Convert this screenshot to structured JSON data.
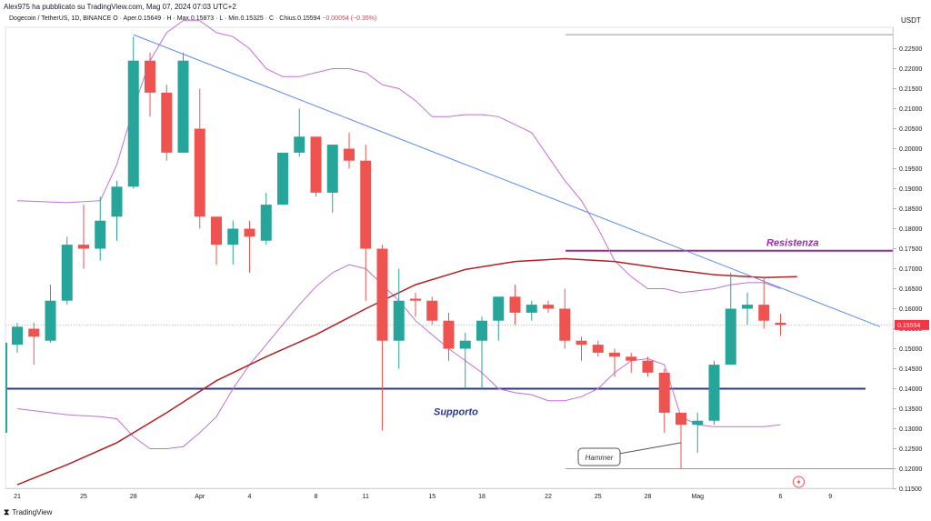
{
  "header": {
    "publisher": "Alex975 ha pubblicato su TradingView.com, Mag 07, 2024 07:03 UTC+2",
    "symbol": "Dogecoin / TetherUS, 1D, BINANCE",
    "ohlc": "O · Aper.0.15649 · H · Max.0.15873 · L · Min.0.15325 · C · Chius.0.15594",
    "change": "−0.00054 (−0.35%)"
  },
  "currency": "USDT",
  "branding": "TradingView",
  "colors": {
    "up": "#26a69a",
    "down": "#ef5350",
    "trendline": "#5b8def",
    "support": "#283593",
    "resistance": "#9c27b0",
    "ma": "#b22222",
    "bands": "#c070d8"
  },
  "chart_data": {
    "type": "candlestick",
    "ylim": [
      0.115,
      0.23
    ],
    "y_ticks": [
      "0.22500",
      "0.22000",
      "0.21500",
      "0.21000",
      "0.20500",
      "0.20000",
      "0.19500",
      "0.19000",
      "0.18500",
      "0.18000",
      "0.17500",
      "0.17000",
      "0.16500",
      "0.16000",
      "0.15500",
      "0.15000",
      "0.14500",
      "0.14000",
      "0.13500",
      "0.13000",
      "0.12500",
      "0.12000",
      "0.11500"
    ],
    "x_ticks": [
      {
        "label": "21",
        "index": 0
      },
      {
        "label": "25",
        "index": 4
      },
      {
        "label": "28",
        "index": 7
      },
      {
        "label": "Apr",
        "index": 11
      },
      {
        "label": "4",
        "index": 14
      },
      {
        "label": "8",
        "index": 18
      },
      {
        "label": "11",
        "index": 21
      },
      {
        "label": "15",
        "index": 25
      },
      {
        "label": "18",
        "index": 28
      },
      {
        "label": "22",
        "index": 32
      },
      {
        "label": "25",
        "index": 35
      },
      {
        "label": "28",
        "index": 38
      },
      {
        "label": "Mag",
        "index": 41
      },
      {
        "label": "6",
        "index": 46
      },
      {
        "label": "9",
        "index": 49
      }
    ],
    "candles": [
      [
        0.151,
        0.1565,
        0.149,
        0.1555
      ],
      [
        0.155,
        0.1565,
        0.146,
        0.153
      ],
      [
        0.152,
        0.166,
        0.1515,
        0.162
      ],
      [
        0.162,
        0.178,
        0.161,
        0.176
      ],
      [
        0.176,
        0.186,
        0.17,
        0.175
      ],
      [
        0.175,
        0.188,
        0.172,
        0.182
      ],
      [
        0.183,
        0.192,
        0.177,
        0.1905
      ],
      [
        0.1905,
        0.228,
        0.19,
        0.222
      ],
      [
        0.222,
        0.224,
        0.208,
        0.214
      ],
      [
        0.214,
        0.216,
        0.197,
        0.199
      ],
      [
        0.199,
        0.224,
        0.199,
        0.222
      ],
      [
        0.205,
        0.215,
        0.18,
        0.183
      ],
      [
        0.183,
        0.183,
        0.171,
        0.176
      ],
      [
        0.176,
        0.182,
        0.171,
        0.18
      ],
      [
        0.18,
        0.182,
        0.169,
        0.178
      ],
      [
        0.177,
        0.189,
        0.176,
        0.186
      ],
      [
        0.186,
        0.199,
        0.186,
        0.199
      ],
      [
        0.199,
        0.21,
        0.198,
        0.203
      ],
      [
        0.203,
        0.202,
        0.188,
        0.189
      ],
      [
        0.189,
        0.201,
        0.184,
        0.201
      ],
      [
        0.2,
        0.204,
        0.195,
        0.197
      ],
      [
        0.197,
        0.201,
        0.162,
        0.175
      ],
      [
        0.175,
        0.176,
        0.1295,
        0.152
      ],
      [
        0.152,
        0.17,
        0.145,
        0.162
      ],
      [
        0.1625,
        0.164,
        0.158,
        0.162
      ],
      [
        0.162,
        0.163,
        0.156,
        0.157
      ],
      [
        0.157,
        0.159,
        0.147,
        0.15
      ],
      [
        0.15,
        0.154,
        0.14,
        0.152
      ],
      [
        0.152,
        0.158,
        0.14,
        0.157
      ],
      [
        0.157,
        0.163,
        0.152,
        0.163
      ],
      [
        0.163,
        0.166,
        0.156,
        0.159
      ],
      [
        0.159,
        0.162,
        0.157,
        0.161
      ],
      [
        0.161,
        0.162,
        0.159,
        0.16
      ],
      [
        0.16,
        0.165,
        0.15,
        0.152
      ],
      [
        0.152,
        0.153,
        0.147,
        0.151
      ],
      [
        0.151,
        0.152,
        0.148,
        0.149
      ],
      [
        0.149,
        0.15,
        0.143,
        0.148
      ],
      [
        0.148,
        0.149,
        0.144,
        0.147
      ],
      [
        0.147,
        0.148,
        0.143,
        0.144
      ],
      [
        0.144,
        0.145,
        0.129,
        0.134
      ],
      [
        0.134,
        0.134,
        0.12,
        0.131
      ],
      [
        0.131,
        0.134,
        0.124,
        0.132
      ],
      [
        0.132,
        0.147,
        0.131,
        0.146
      ],
      [
        0.146,
        0.169,
        0.146,
        0.16
      ],
      [
        0.16,
        0.164,
        0.156,
        0.161
      ],
      [
        0.161,
        0.168,
        0.155,
        0.157
      ],
      [
        0.15649,
        0.15873,
        0.15325,
        0.15594
      ]
    ],
    "support_level": 0.14,
    "resistance_level": 0.1745,
    "top_line_level": 0.2285,
    "bottom_line_level": 0.12,
    "current_price_label": "0.15594",
    "trendline": {
      "from": {
        "index": 7,
        "price": 0.2285
      },
      "to": {
        "index": 52,
        "price": 0.1555
      }
    },
    "moving_average": [
      [
        0,
        0.116
      ],
      [
        3,
        0.121
      ],
      [
        6,
        0.1265
      ],
      [
        9,
        0.134
      ],
      [
        12,
        0.142
      ],
      [
        15,
        0.148
      ],
      [
        18,
        0.1535
      ],
      [
        21,
        0.16
      ],
      [
        24,
        0.166
      ],
      [
        27,
        0.1698
      ],
      [
        30,
        0.1718
      ],
      [
        33,
        0.1725
      ],
      [
        36,
        0.1718
      ],
      [
        39,
        0.17
      ],
      [
        42,
        0.1685
      ],
      [
        45,
        0.1678
      ],
      [
        47,
        0.168
      ]
    ],
    "upper_band": [
      [
        0,
        0.187
      ],
      [
        3,
        0.1865
      ],
      [
        5,
        0.187
      ],
      [
        6,
        0.196
      ],
      [
        7,
        0.21
      ],
      [
        8,
        0.222
      ],
      [
        9,
        0.229
      ],
      [
        10,
        0.232
      ],
      [
        11,
        0.232
      ],
      [
        12,
        0.229
      ],
      [
        13,
        0.228
      ],
      [
        14,
        0.225
      ],
      [
        15,
        0.22
      ],
      [
        16,
        0.218
      ],
      [
        17,
        0.218
      ],
      [
        18,
        0.219
      ],
      [
        19,
        0.22
      ],
      [
        20,
        0.22
      ],
      [
        21,
        0.219
      ],
      [
        22,
        0.216
      ],
      [
        23,
        0.215
      ],
      [
        24,
        0.212
      ],
      [
        25,
        0.208
      ],
      [
        26,
        0.208
      ],
      [
        27,
        0.2085
      ],
      [
        28,
        0.2085
      ],
      [
        29,
        0.208
      ],
      [
        30,
        0.206
      ],
      [
        31,
        0.204
      ],
      [
        32,
        0.198
      ],
      [
        33,
        0.192
      ],
      [
        34,
        0.187
      ],
      [
        35,
        0.18
      ],
      [
        36,
        0.172
      ],
      [
        37,
        0.168
      ],
      [
        38,
        0.165
      ],
      [
        39,
        0.165
      ],
      [
        40,
        0.164
      ],
      [
        41,
        0.1645
      ],
      [
        42,
        0.165
      ],
      [
        43,
        0.166
      ],
      [
        44,
        0.1665
      ],
      [
        45,
        0.1665
      ],
      [
        46,
        0.165
      ]
    ],
    "lower_band": [
      [
        0,
        0.135
      ],
      [
        3,
        0.1335
      ],
      [
        5,
        0.133
      ],
      [
        6,
        0.1325
      ],
      [
        7,
        0.128
      ],
      [
        8,
        0.125
      ],
      [
        9,
        0.125
      ],
      [
        10,
        0.1255
      ],
      [
        11,
        0.129
      ],
      [
        12,
        0.133
      ],
      [
        13,
        0.14
      ],
      [
        14,
        0.146
      ],
      [
        15,
        0.151
      ],
      [
        16,
        0.156
      ],
      [
        17,
        0.161
      ],
      [
        18,
        0.1655
      ],
      [
        19,
        0.169
      ],
      [
        20,
        0.171
      ],
      [
        21,
        0.17
      ],
      [
        22,
        0.166
      ],
      [
        23,
        0.162
      ],
      [
        24,
        0.157
      ],
      [
        25,
        0.1535
      ],
      [
        26,
        0.15
      ],
      [
        27,
        0.147
      ],
      [
        28,
        0.144
      ],
      [
        29,
        0.14
      ],
      [
        30,
        0.139
      ],
      [
        31,
        0.1385
      ],
      [
        32,
        0.137
      ],
      [
        33,
        0.137
      ],
      [
        34,
        0.138
      ],
      [
        35,
        0.14
      ],
      [
        36,
        0.144
      ],
      [
        37,
        0.147
      ],
      [
        38,
        0.1475
      ],
      [
        39,
        0.146
      ],
      [
        40,
        0.133
      ],
      [
        41,
        0.131
      ],
      [
        42,
        0.1305
      ],
      [
        43,
        0.1305
      ],
      [
        44,
        0.1305
      ],
      [
        45,
        0.1305
      ],
      [
        46,
        0.131
      ]
    ],
    "annotations": {
      "resistance": "Resistenza",
      "support": "Supporto",
      "hammer": "Hammer"
    },
    "hammer_point": {
      "index": 40,
      "price": 0.1265
    }
  }
}
